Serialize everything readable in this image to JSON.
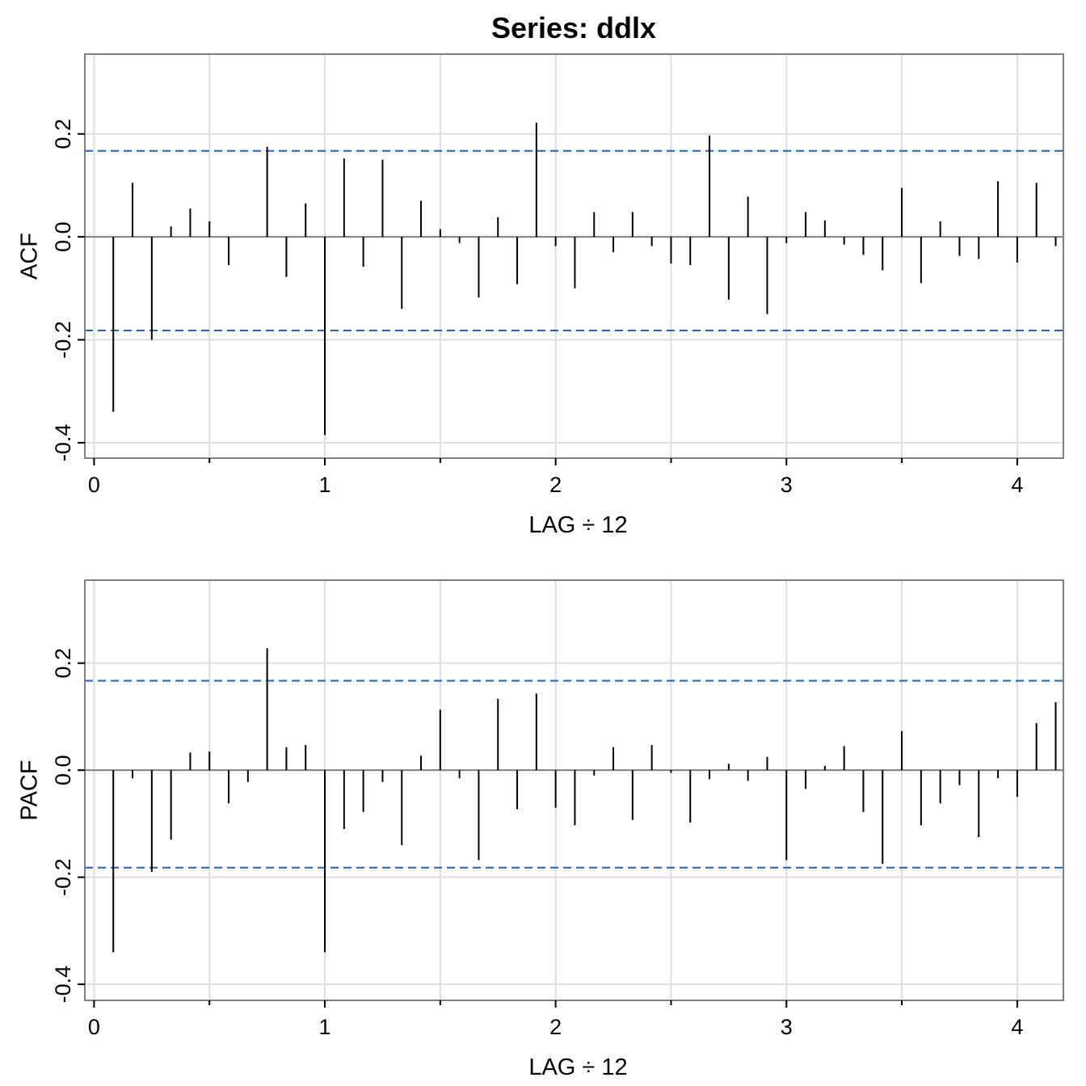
{
  "figure": {
    "title": "Series:  ddlx"
  },
  "chart_data": [
    {
      "type": "bar",
      "ylabel": "ACF",
      "xlabel": "LAG ÷ 12",
      "xlim": [
        -0.04,
        4.2
      ],
      "ylim": [
        -0.43,
        0.355
      ],
      "xticks": [
        0,
        1,
        2,
        3,
        4
      ],
      "yticks": [
        -0.4,
        -0.2,
        0.0,
        0.2
      ],
      "ytick_labels": [
        "-0.4",
        "-0.2",
        "0.0",
        "0.2"
      ],
      "x_minor_ticks": [
        0.5,
        1.5,
        2.5,
        3.5
      ],
      "grid": true,
      "conf_bands": [
        0.167,
        -0.182
      ],
      "colors": {
        "bars": "#000000",
        "bands": "#1f5fc7",
        "grid": "#dddddd",
        "frame": "#808080",
        "zero_line": "#808080"
      },
      "lag_step": 0.0833333,
      "values": [
        -0.34,
        0.105,
        -0.2,
        0.02,
        0.055,
        0.03,
        -0.055,
        0.0,
        0.175,
        -0.078,
        0.065,
        -0.385,
        0.152,
        -0.058,
        0.15,
        -0.14,
        0.07,
        0.015,
        -0.012,
        -0.118,
        0.038,
        -0.092,
        0.222,
        -0.018,
        -0.1,
        0.048,
        -0.03,
        0.048,
        -0.018,
        -0.052,
        -0.055,
        0.197,
        -0.122,
        0.078,
        -0.15,
        -0.012,
        0.048,
        0.032,
        -0.015,
        -0.035,
        -0.065,
        0.095,
        -0.09,
        0.03,
        -0.037,
        -0.043,
        0.108,
        -0.05,
        0.105,
        -0.018
      ]
    },
    {
      "type": "bar",
      "ylabel": "PACF",
      "xlabel": "LAG ÷ 12",
      "xlim": [
        -0.04,
        4.2
      ],
      "ylim": [
        -0.43,
        0.355
      ],
      "xticks": [
        0,
        1,
        2,
        3,
        4
      ],
      "yticks": [
        -0.4,
        -0.2,
        0.0,
        0.2
      ],
      "ytick_labels": [
        "-0.4",
        "-0.2",
        "0.0",
        "0.2"
      ],
      "x_minor_ticks": [
        0.5,
        1.5,
        2.5,
        3.5
      ],
      "grid": true,
      "conf_bands": [
        0.167,
        -0.182
      ],
      "colors": {
        "bars": "#000000",
        "bands": "#1f5fc7",
        "grid": "#dddddd",
        "frame": "#808080",
        "zero_line": "#808080"
      },
      "lag_step": 0.0833333,
      "values": [
        -0.34,
        -0.015,
        -0.19,
        -0.13,
        0.033,
        0.035,
        -0.062,
        -0.022,
        0.228,
        0.043,
        0.047,
        -0.34,
        -0.11,
        -0.078,
        -0.022,
        -0.14,
        0.027,
        0.113,
        -0.015,
        -0.168,
        0.133,
        -0.073,
        0.143,
        -0.07,
        -0.103,
        -0.01,
        0.043,
        -0.093,
        0.047,
        -0.005,
        -0.098,
        -0.017,
        0.012,
        -0.02,
        0.025,
        -0.168,
        -0.035,
        0.008,
        0.045,
        -0.078,
        -0.175,
        0.073,
        -0.103,
        -0.062,
        -0.028,
        -0.125,
        -0.015,
        -0.05,
        0.088,
        0.127
      ]
    }
  ]
}
